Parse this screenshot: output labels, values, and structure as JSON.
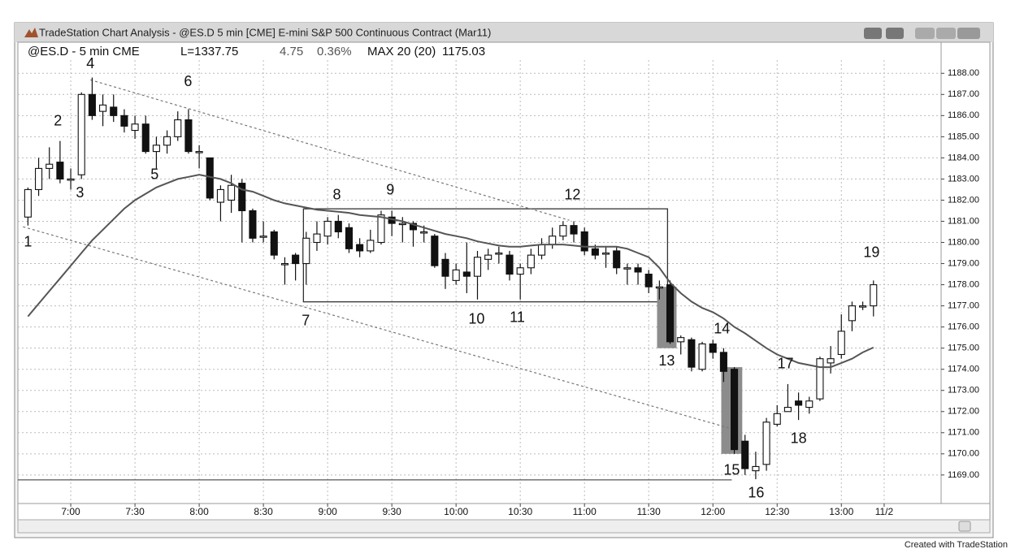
{
  "window": {
    "title": "TradeStation Chart Analysis - @ES.D  5 min [CME] E-mini S&P 500 Continuous Contract (Mar11)",
    "footer": "Created with TradeStation"
  },
  "chart_data": {
    "type": "candlestick",
    "symbol": "@ES.D - 5 min CME",
    "last": "L=1337.75",
    "change": "4.75",
    "change_pct": "0.36%",
    "x": [
      400,
      405,
      410,
      415,
      420,
      425,
      430,
      435,
      440,
      445,
      450,
      455,
      460,
      465,
      470,
      475,
      480,
      485,
      490,
      495,
      500,
      505,
      510,
      515,
      520,
      525,
      530,
      535,
      540,
      545,
      550,
      555,
      560,
      565,
      570,
      575,
      580,
      585,
      590,
      595,
      600,
      605,
      610,
      615,
      620,
      625,
      630,
      635,
      640,
      645,
      650,
      655,
      660,
      665,
      670,
      675,
      680,
      685,
      690,
      695,
      700,
      705,
      710,
      715,
      720,
      725,
      730,
      735,
      740,
      745,
      750,
      755,
      760,
      765,
      770,
      775,
      780,
      785,
      790,
      795
    ],
    "open": [
      1181.2,
      1182.5,
      1183.5,
      1183.8,
      1183.0,
      1183.2,
      1187.0,
      1186.2,
      1186.4,
      1186.0,
      1185.3,
      1185.6,
      1184.3,
      1184.6,
      1185.0,
      1185.8,
      1184.3,
      1184.0,
      1181.9,
      1182.0,
      1182.8,
      1181.5,
      1180.3,
      1180.5,
      1179.0,
      1179.4,
      1179.0,
      1180.0,
      1180.3,
      1181.0,
      1180.7,
      1179.9,
      1179.6,
      1180.0,
      1181.2,
      1180.9,
      1180.9,
      1180.5,
      1180.3,
      1179.2,
      1178.2,
      1178.6,
      1178.4,
      1179.2,
      1179.5,
      1179.4,
      1178.5,
      1178.8,
      1179.4,
      1179.9,
      1180.3,
      1180.8,
      1180.5,
      1179.7,
      1179.5,
      1179.6,
      1178.8,
      1178.8,
      1178.5,
      1177.9,
      1178.0,
      1175.3,
      1175.4,
      1174.0,
      1175.2,
      1174.8,
      1174.0,
      1170.6,
      1169.2,
      1169.5,
      1171.4,
      1172.0,
      1172.5,
      1172.2,
      1172.6,
      1174.3,
      1174.7,
      1176.3,
      1177.0,
      1177.0
    ],
    "high": [
      1182.6,
      1184.0,
      1184.5,
      1184.8,
      1183.5,
      1187.1,
      1187.8,
      1187.0,
      1187.0,
      1186.3,
      1186.0,
      1186.0,
      1185.0,
      1185.3,
      1186.2,
      1186.3,
      1184.6,
      1184.0,
      1182.7,
      1183.2,
      1183.0,
      1181.6,
      1181.0,
      1180.6,
      1179.3,
      1179.5,
      1180.5,
      1181.0,
      1181.2,
      1181.3,
      1180.9,
      1180.2,
      1180.6,
      1181.5,
      1181.5,
      1181.2,
      1181.0,
      1180.8,
      1180.4,
      1179.5,
      1179.0,
      1180.0,
      1179.6,
      1179.7,
      1179.8,
      1179.6,
      1179.0,
      1179.7,
      1180.2,
      1180.7,
      1181.0,
      1181.0,
      1180.7,
      1179.9,
      1179.8,
      1179.8,
      1179.0,
      1179.0,
      1178.7,
      1178.2,
      1178.2,
      1175.6,
      1175.5,
      1175.3,
      1175.4,
      1175.0,
      1174.1,
      1170.9,
      1170.1,
      1171.7,
      1172.3,
      1173.3,
      1172.9,
      1172.7,
      1174.6,
      1175.1,
      1176.6,
      1177.2,
      1177.2,
      1178.2
    ],
    "low": [
      1180.8,
      1182.2,
      1183.0,
      1182.8,
      1182.5,
      1183.0,
      1185.8,
      1185.5,
      1185.7,
      1185.2,
      1184.9,
      1184.2,
      1183.5,
      1184.2,
      1184.8,
      1184.2,
      1183.5,
      1182.0,
      1181.0,
      1181.4,
      1180.0,
      1180.0,
      1180.0,
      1179.2,
      1178.0,
      1178.2,
      1178.0,
      1179.6,
      1179.9,
      1180.2,
      1179.5,
      1179.3,
      1179.5,
      1179.9,
      1180.3,
      1180.0,
      1179.8,
      1180.0,
      1178.8,
      1177.8,
      1178.0,
      1177.6,
      1177.3,
      1178.7,
      1179.0,
      1178.2,
      1177.3,
      1178.5,
      1179.2,
      1179.7,
      1180.1,
      1180.0,
      1179.4,
      1179.2,
      1178.8,
      1178.5,
      1178.0,
      1178.0,
      1177.6,
      1177.3,
      1175.2,
      1174.7,
      1173.9,
      1173.9,
      1174.5,
      1173.4,
      1170.0,
      1169.0,
      1168.8,
      1169.2,
      1171.3,
      1172.0,
      1171.6,
      1171.9,
      1172.5,
      1173.8,
      1174.5,
      1175.8,
      1176.8,
      1176.5
    ],
    "close": [
      1182.5,
      1183.5,
      1183.7,
      1183.0,
      1183.0,
      1187.0,
      1186.0,
      1186.5,
      1186.0,
      1185.5,
      1185.6,
      1184.3,
      1184.6,
      1185.0,
      1185.8,
      1184.3,
      1184.3,
      1182.1,
      1182.5,
      1182.7,
      1181.5,
      1180.2,
      1180.3,
      1179.4,
      1179.0,
      1179.0,
      1180.2,
      1180.4,
      1181.0,
      1180.5,
      1179.7,
      1179.6,
      1180.1,
      1181.3,
      1180.9,
      1180.9,
      1180.6,
      1180.5,
      1178.9,
      1178.4,
      1178.7,
      1178.4,
      1179.3,
      1179.4,
      1179.5,
      1178.5,
      1178.8,
      1179.4,
      1179.9,
      1180.3,
      1180.8,
      1180.4,
      1179.6,
      1179.4,
      1179.5,
      1178.8,
      1178.8,
      1178.6,
      1177.9,
      1177.9,
      1175.3,
      1175.5,
      1174.1,
      1175.2,
      1174.8,
      1173.9,
      1170.2,
      1169.3,
      1169.4,
      1171.5,
      1171.9,
      1172.2,
      1172.3,
      1172.5,
      1174.5,
      1174.5,
      1175.8,
      1177.0,
      1177.0,
      1178.0
    ],
    "ma": {
      "name": "MAX 20 (20)",
      "color": "#555555",
      "values": [
        1176.5,
        1177.1,
        1177.7,
        1178.3,
        1178.9,
        1179.5,
        1180.1,
        1180.6,
        1181.1,
        1181.6,
        1182.0,
        1182.3,
        1182.6,
        1182.8,
        1183.0,
        1183.1,
        1183.2,
        1183.1,
        1183.0,
        1182.8,
        1182.5,
        1182.4,
        1182.2,
        1182.0,
        1181.85,
        1181.75,
        1181.65,
        1181.55,
        1181.5,
        1181.45,
        1181.4,
        1181.3,
        1181.25,
        1181.2,
        1181.1,
        1181.0,
        1180.85,
        1180.7,
        1180.55,
        1180.4,
        1180.3,
        1180.2,
        1180.05,
        1179.95,
        1179.85,
        1179.8,
        1179.8,
        1179.85,
        1179.9,
        1179.9,
        1179.9,
        1179.85,
        1179.8,
        1179.8,
        1179.8,
        1179.8,
        1179.7,
        1179.5,
        1179.3,
        1178.8,
        1178.1,
        1177.6,
        1177.2,
        1176.9,
        1176.7,
        1176.4,
        1176.0,
        1175.7,
        1175.35,
        1175.0,
        1174.7,
        1174.5,
        1174.3,
        1174.2,
        1174.1,
        1174.1,
        1174.3,
        1174.5,
        1174.8,
        1175.03
      ]
    },
    "xlim": [
      395.3,
      826.6
    ],
    "ylim": [
      1167.65,
      1189.47
    ],
    "xticks": [
      {
        "value": 420,
        "label": "7:00"
      },
      {
        "value": 450,
        "label": "7:30"
      },
      {
        "value": 480,
        "label": "8:00"
      },
      {
        "value": 510,
        "label": "8:30"
      },
      {
        "value": 540,
        "label": "9:00"
      },
      {
        "value": 570,
        "label": "9:30"
      },
      {
        "value": 600,
        "label": "10:00"
      },
      {
        "value": 630,
        "label": "10:30"
      },
      {
        "value": 660,
        "label": "11:00"
      },
      {
        "value": 690,
        "label": "11:30"
      },
      {
        "value": 720,
        "label": "12:00"
      },
      {
        "value": 750,
        "label": "12:30"
      },
      {
        "value": 780,
        "label": "13:00"
      },
      {
        "value": 800,
        "label": "11/2"
      }
    ],
    "yticks": [
      {
        "value": 1169,
        "label": "1169.00"
      },
      {
        "value": 1170,
        "label": "1170.00"
      },
      {
        "value": 1171,
        "label": "1171.00"
      },
      {
        "value": 1172,
        "label": "1172.00"
      },
      {
        "value": 1173,
        "label": "1173.00"
      },
      {
        "value": 1174,
        "label": "1174.00"
      },
      {
        "value": 1175,
        "label": "1175.00"
      },
      {
        "value": 1176,
        "label": "1176.00"
      },
      {
        "value": 1177,
        "label": "1177.00"
      },
      {
        "value": 1178,
        "label": "1178.00"
      },
      {
        "value": 1179,
        "label": "1179.00"
      },
      {
        "value": 1180,
        "label": "1180.00"
      },
      {
        "value": 1181,
        "label": "1181.00"
      },
      {
        "value": 1182,
        "label": "1182.00"
      },
      {
        "value": 1183,
        "label": "1183.00"
      },
      {
        "value": 1184,
        "label": "1184.00"
      },
      {
        "value": 1185,
        "label": "1185.00"
      },
      {
        "value": 1186,
        "label": "1186.00"
      },
      {
        "value": 1187,
        "label": "1187.00"
      },
      {
        "value": 1188,
        "label": "1188.00"
      }
    ],
    "grid": true,
    "annotations": [
      {
        "text": "1",
        "x": 400,
        "y": 1180.0
      },
      {
        "text": "2",
        "x": 414,
        "y": 1185.72
      },
      {
        "text": "3",
        "x": 424.3,
        "y": 1182.32
      },
      {
        "text": "4",
        "x": 429.2,
        "y": 1188.42
      },
      {
        "text": "5",
        "x": 459.2,
        "y": 1183.17
      },
      {
        "text": "6",
        "x": 474.8,
        "y": 1187.58
      },
      {
        "text": "7",
        "x": 529.8,
        "y": 1176.26
      },
      {
        "text": "8",
        "x": 544.3,
        "y": 1182.21
      },
      {
        "text": "9",
        "x": 569.3,
        "y": 1182.44
      },
      {
        "text": "10",
        "x": 609.6,
        "y": 1176.34
      },
      {
        "text": "11",
        "x": 628.6,
        "y": 1176.42
      },
      {
        "text": "12",
        "x": 654.4,
        "y": 1182.21
      },
      {
        "text": "13",
        "x": 698.4,
        "y": 1174.37
      },
      {
        "text": "14",
        "x": 724.2,
        "y": 1175.88
      },
      {
        "text": "15",
        "x": 728.8,
        "y": 1169.2
      },
      {
        "text": "16",
        "x": 740.2,
        "y": 1168.12
      },
      {
        "text": "17",
        "x": 753.9,
        "y": 1174.22
      },
      {
        "text": "18",
        "x": 760,
        "y": 1170.7
      },
      {
        "text": "19",
        "x": 794.1,
        "y": 1179.5
      }
    ],
    "lines": [
      {
        "x": [
          429.2,
          652.9
        ],
        "y": [
          1187.69,
          1181.05
        ],
        "style": "dotted"
      },
      {
        "x": [
          397.7,
          730.7
        ],
        "y": [
          1180.74,
          1171.13
        ],
        "style": "dotted"
      },
      {
        "x": [
          395.3,
          728.8
        ],
        "y": [
          1168.77,
          1168.77
        ],
        "style": "solid"
      }
    ],
    "boxes": [
      {
        "x": [
          528.7,
          698.8
        ],
        "y": [
          1181.59,
          1177.19
        ],
        "style": "outline"
      },
      {
        "x": [
          693.9,
          703
        ],
        "y": [
          1177.9,
          1175.0
        ],
        "style": "shade"
      },
      {
        "x": [
          723.9,
          733.7
        ],
        "y": [
          1174.1,
          1170.0
        ],
        "style": "shade"
      }
    ]
  }
}
